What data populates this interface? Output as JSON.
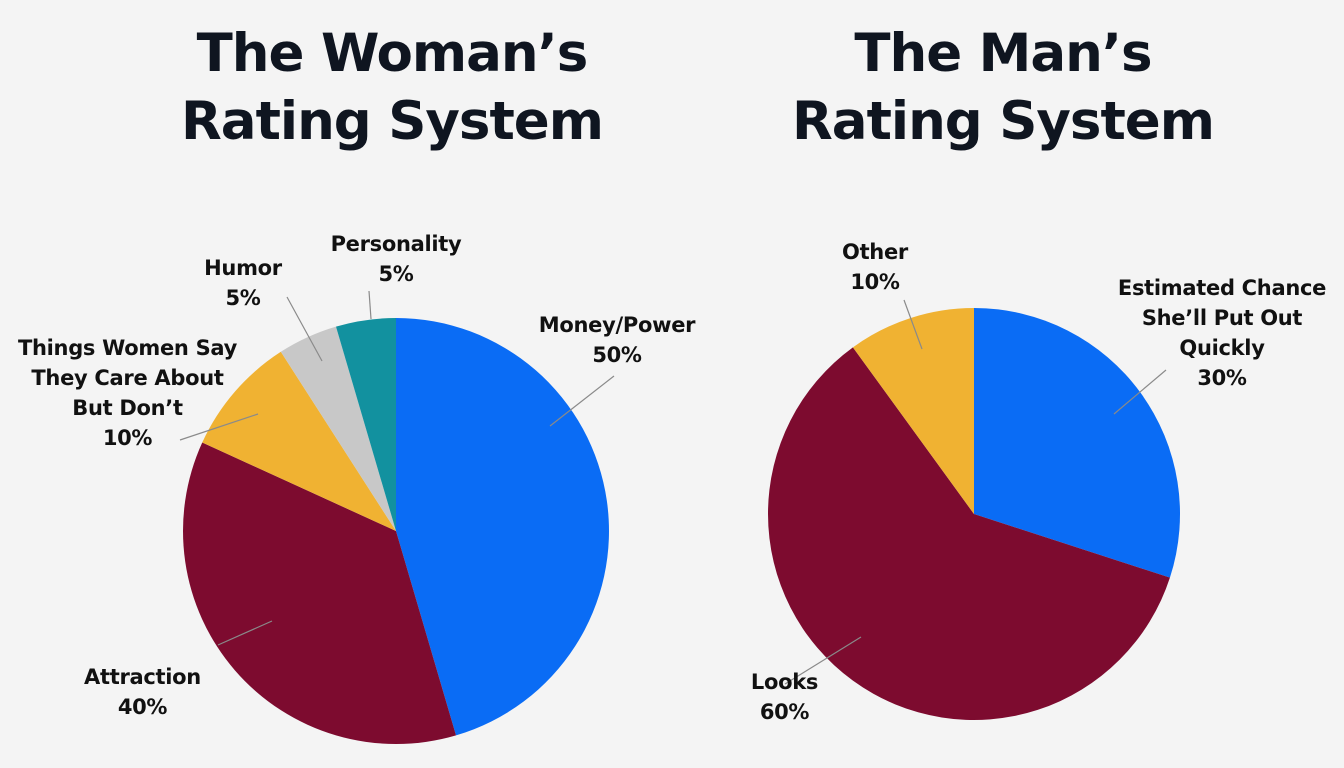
{
  "colors": {
    "background": "#f4f4f4",
    "title": "#0f1520",
    "blue": "#0a6cf5",
    "maroon": "#7d0b2f",
    "yellow": "#f0b232",
    "gray": "#c8c8c8",
    "teal": "#12919f",
    "leader": "#8a8a8a"
  },
  "chart_data": [
    {
      "type": "pie",
      "title": [
        "The Woman’s",
        "Rating System"
      ],
      "slices": [
        {
          "label": [
            "Money/Power"
          ],
          "value": 50,
          "value_label": "50%",
          "color": "#0a6cf5"
        },
        {
          "label": [
            "Attraction"
          ],
          "value": 40,
          "value_label": "40%",
          "color": "#7d0b2f"
        },
        {
          "label": [
            "Things Women Say",
            "They Care About",
            "But Don’t"
          ],
          "value": 10,
          "value_label": "10%",
          "color": "#f0b232"
        },
        {
          "label": [
            "Humor"
          ],
          "value": 5,
          "value_label": "5%",
          "color": "#c8c8c8"
        },
        {
          "label": [
            "Personality"
          ],
          "value": 5,
          "value_label": "5%",
          "color": "#12919f"
        }
      ]
    },
    {
      "type": "pie",
      "title": [
        "The Man’s",
        "Rating System"
      ],
      "slices": [
        {
          "label": [
            "Estimated Chance",
            "She’ll Put Out",
            "Quickly"
          ],
          "value": 30,
          "value_label": "30%",
          "color": "#0a6cf5"
        },
        {
          "label": [
            "Looks"
          ],
          "value": 60,
          "value_label": "60%",
          "color": "#7d0b2f"
        },
        {
          "label": [
            "Other"
          ],
          "value": 10,
          "value_label": "10%",
          "color": "#f0b232"
        }
      ]
    }
  ]
}
